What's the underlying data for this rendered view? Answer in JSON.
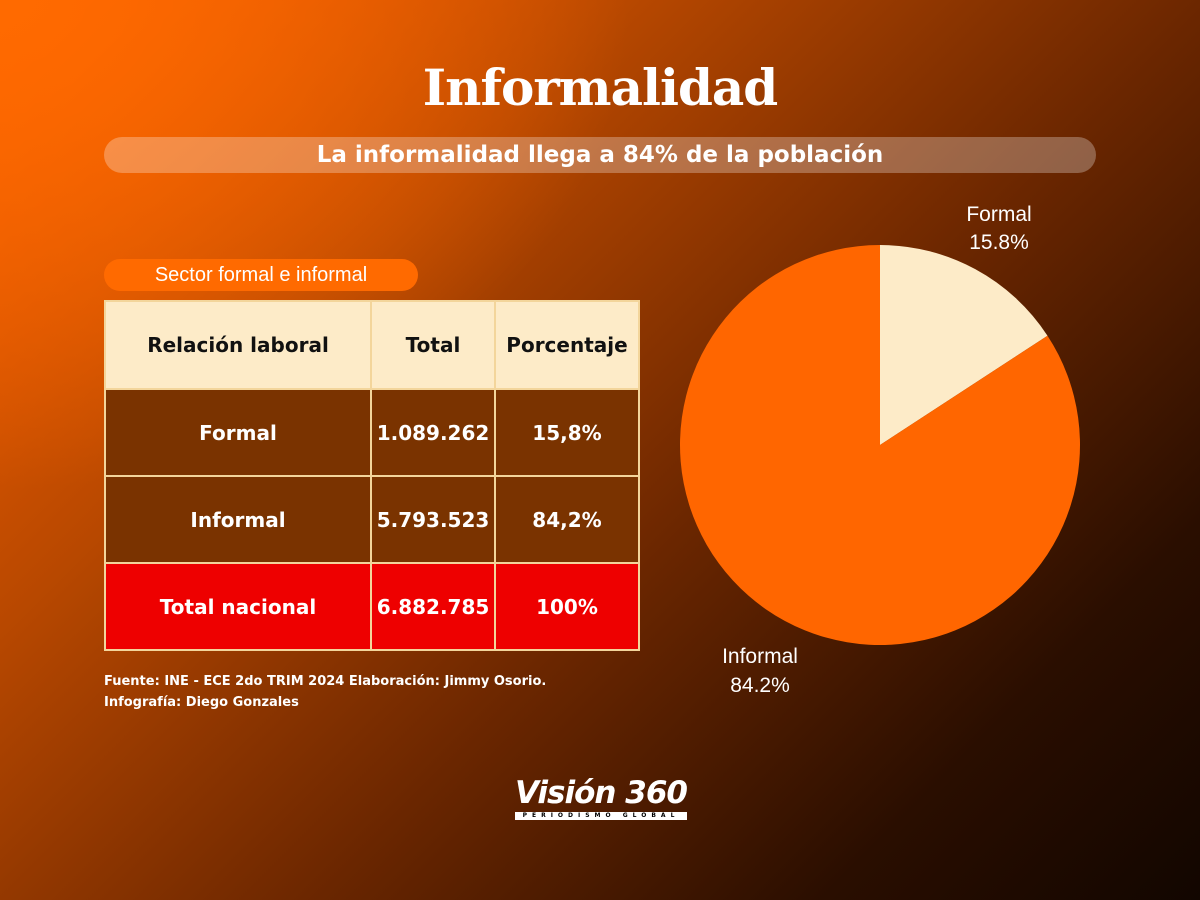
{
  "title": "Informalidad",
  "subtitle": "La informalidad llega a 84% de la población",
  "section_label": "Sector formal e informal",
  "table": {
    "headers": [
      "Relación laboral",
      "Total",
      "Porcentaje"
    ],
    "rows": [
      [
        "Formal",
        "1.089.262",
        "15,8%"
      ],
      [
        "Informal",
        "5.793.523",
        "84,2%"
      ],
      [
        "Total nacional",
        "6.882.785",
        "100%"
      ]
    ]
  },
  "source": {
    "line1": "Fuente: INE - ECE 2do TRIM 2024 Elaboración: Jimmy Osorio.",
    "line2": "Infografía: Diego Gonzales"
  },
  "colors": {
    "formal": "#fdebc8",
    "informal": "#ff6600",
    "total_row": "#ee0000",
    "pill": "#ff6a00"
  },
  "chart_data": {
    "type": "pie",
    "labels": [
      "Formal",
      "Informal"
    ],
    "values": [
      15.8,
      84.2
    ],
    "value_labels": [
      "15.8%",
      "84.2%"
    ],
    "colors": [
      "#fdebc8",
      "#ff6600"
    ]
  },
  "logo": {
    "name": "Visión 360",
    "tagline": "PERIODISMO GLOBAL"
  }
}
